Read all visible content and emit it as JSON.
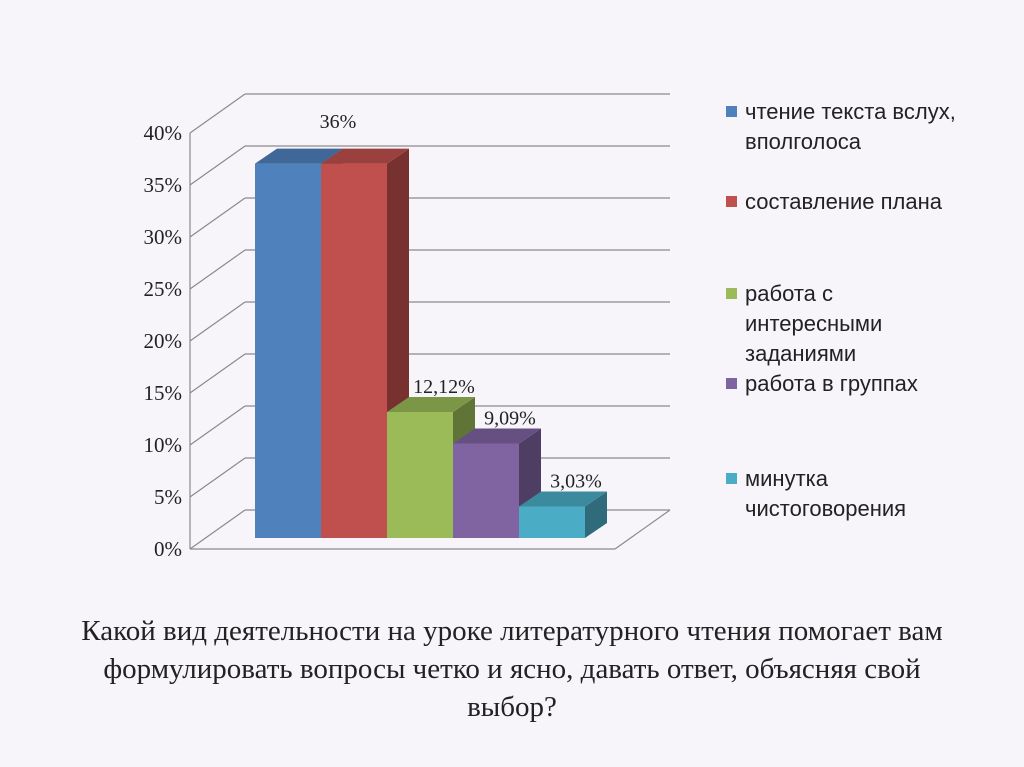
{
  "chart_data": {
    "type": "bar",
    "three_d": true,
    "ylim": [
      0,
      40
    ],
    "y_ticks": [
      "0%",
      "5%",
      "10%",
      "15%",
      "20%",
      "25%",
      "30%",
      "35%",
      "40%"
    ],
    "y_tick_values": [
      0,
      5,
      10,
      15,
      20,
      25,
      30,
      35,
      40
    ],
    "grid": true,
    "legend_position": "right",
    "series": [
      {
        "name": "чтение текста вслух, вполголоса",
        "value": 36,
        "label": "",
        "color": "#4f81bd"
      },
      {
        "name": "составление плана",
        "value": 36,
        "label": "36%",
        "color": "#c0504d"
      },
      {
        "name": "работа с интересными заданиями",
        "value": 12.12,
        "label": "12,12%",
        "color": "#9bbb59"
      },
      {
        "name": "работа в группах",
        "value": 9.09,
        "label": "9,09%",
        "color": "#8064a2"
      },
      {
        "name": "минутка чистоговорения",
        "value": 3.03,
        "label": "3,03%",
        "color": "#4bacc6"
      }
    ]
  },
  "legend": [
    {
      "text": "чтение текста вслух, вполголоса",
      "color": "#4f81bd"
    },
    {
      "text": "составление плана",
      "color": "#c0504d"
    },
    {
      "text": "работа с интересными заданиями",
      "color": "#9bbb59"
    },
    {
      "text": "работа в группах",
      "color": "#8064a2"
    },
    {
      "text": "минутка чистоговорения",
      "color": "#4bacc6"
    }
  ],
  "question": "Какой вид деятельности на уроке литературного чтения помогает вам формулировать вопросы четко и ясно, давать ответ, объясняя свой выбор?"
}
